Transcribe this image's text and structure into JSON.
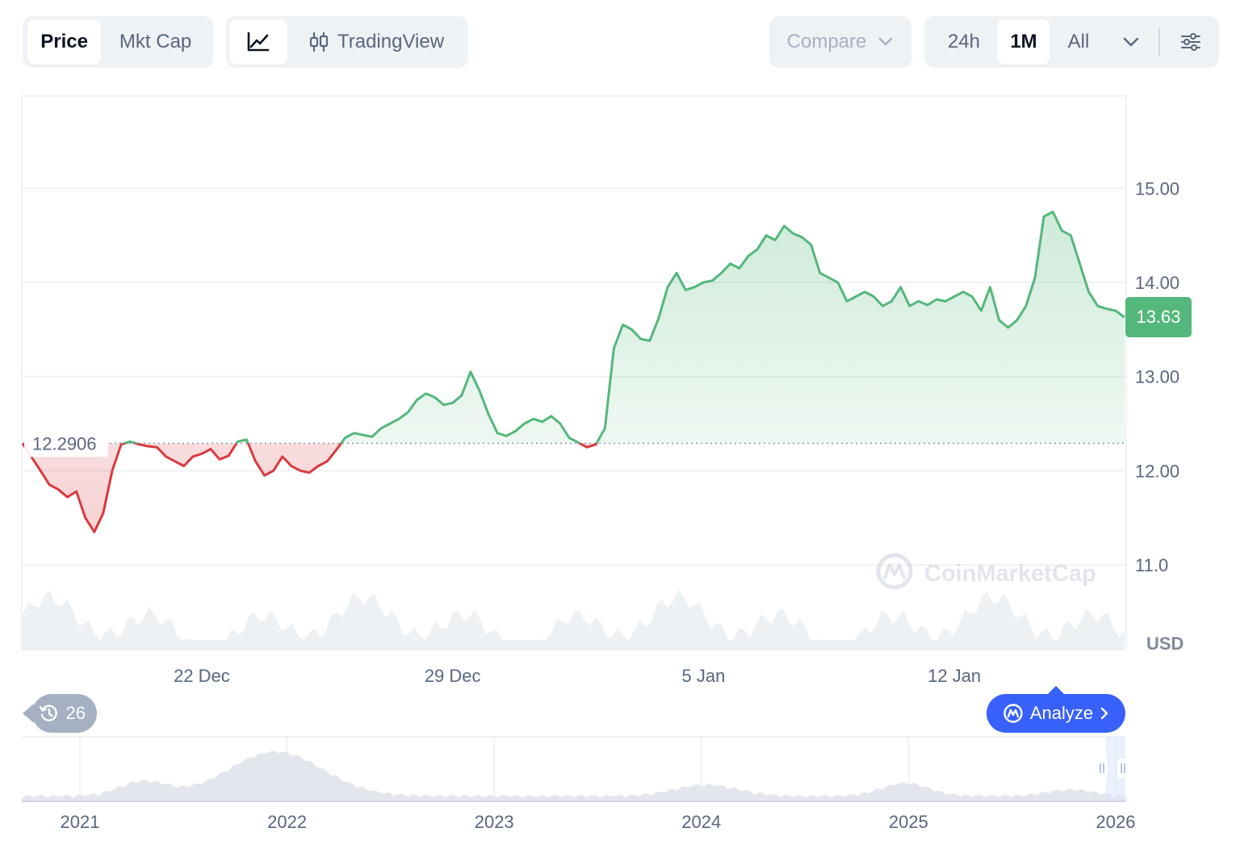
{
  "toolbar": {
    "type_tabs": [
      {
        "label": "Price",
        "active": true
      },
      {
        "label": "Mkt Cap",
        "active": false
      }
    ],
    "chart_tabs": [
      {
        "icon": "line-chart-icon",
        "active": true
      },
      {
        "icon": "candlestick-icon",
        "label": "TradingView",
        "active": false
      }
    ],
    "compare_label": "Compare",
    "range_tabs": [
      {
        "label": "24h",
        "active": false
      },
      {
        "label": "1M",
        "active": true
      },
      {
        "label": "All",
        "active": false
      }
    ],
    "range_more_icon": "chevron-down-icon",
    "settings_icon": "sliders-icon"
  },
  "badges": {
    "open_price": "12.2906",
    "current_price": "13.63",
    "history_count": "26",
    "analyze_label": "Analyze",
    "watermark": "CoinMarketCap",
    "currency": "USD"
  },
  "colors": {
    "up": "#54b77b",
    "down": "#d83a3f",
    "accent": "#3861fb",
    "grid": "#eff2f5",
    "volume": "#e3e7ed"
  },
  "chart_data": [
    {
      "type": "line",
      "id": "price",
      "baseline": 12.2906,
      "last": 13.63,
      "x_ticks": [
        "22 Dec",
        "29 Dec",
        "5 Jan",
        "12 Jan"
      ],
      "y_ticks": [
        "15.00",
        "14.00",
        "13.00",
        "12.00",
        "11.0"
      ],
      "ylim": [
        10.1,
        15.98
      ],
      "ylabel": "USD",
      "grid": true,
      "series": [
        {
          "x": [
            "2025-12-17 00:00",
            "2025-12-17 12:00",
            "2025-12-17 18:00",
            "2025-12-18 00:00",
            "2025-12-18 06:00",
            "2025-12-18 12:00",
            "2025-12-18 18:00",
            "2025-12-19 00:00",
            "2025-12-19 06:00",
            "2025-12-19 12:00",
            "2025-12-19 18:00",
            "2025-12-20 00:00",
            "2025-12-20 06:00",
            "2025-12-20 12:00",
            "2025-12-20 18:00",
            "2025-12-21 00:00",
            "2025-12-21 06:00",
            "2025-12-21 12:00",
            "2025-12-21 18:00",
            "2025-12-22 00:00",
            "2025-12-22 06:00",
            "2025-12-22 12:00",
            "2025-12-22 18:00",
            "2025-12-23 00:00",
            "2025-12-23 06:00",
            "2025-12-23 12:00",
            "2025-12-23 18:00",
            "2025-12-24 00:00",
            "2025-12-24 06:00",
            "2025-12-24 12:00",
            "2025-12-24 18:00",
            "2025-12-25 00:00",
            "2025-12-25 06:00",
            "2025-12-25 12:00",
            "2025-12-25 18:00",
            "2025-12-26 00:00",
            "2025-12-26 06:00",
            "2025-12-26 12:00",
            "2025-12-26 18:00",
            "2025-12-27 00:00",
            "2025-12-27 06:00",
            "2025-12-27 12:00",
            "2025-12-27 18:00",
            "2025-12-28 00:00",
            "2025-12-28 06:00",
            "2025-12-28 12:00",
            "2025-12-28 18:00",
            "2025-12-29 00:00",
            "2025-12-29 06:00",
            "2025-12-29 12:00",
            "2025-12-29 18:00",
            "2025-12-30 00:00",
            "2025-12-30 06:00",
            "2025-12-30 12:00",
            "2025-12-30 18:00",
            "2025-12-31 00:00",
            "2025-12-31 06:00",
            "2025-12-31 12:00",
            "2025-12-31 18:00",
            "2026-01-01 00:00",
            "2026-01-01 06:00",
            "2026-01-01 12:00",
            "2026-01-01 18:00",
            "2026-01-02 00:00",
            "2026-01-02 06:00",
            "2026-01-02 12:00",
            "2026-01-02 18:00",
            "2026-01-03 00:00",
            "2026-01-03 06:00",
            "2026-01-03 12:00",
            "2026-01-03 18:00",
            "2026-01-04 00:00",
            "2026-01-04 06:00",
            "2026-01-04 12:00",
            "2026-01-04 18:00",
            "2026-01-05 00:00",
            "2026-01-05 06:00",
            "2026-01-05 12:00",
            "2026-01-05 18:00",
            "2026-01-06 00:00",
            "2026-01-06 06:00",
            "2026-01-06 12:00",
            "2026-01-06 18:00",
            "2026-01-07 00:00",
            "2026-01-07 06:00",
            "2026-01-07 12:00",
            "2026-01-07 18:00",
            "2026-01-08 00:00",
            "2026-01-08 06:00",
            "2026-01-08 12:00",
            "2026-01-08 18:00",
            "2026-01-09 00:00",
            "2026-01-09 06:00",
            "2026-01-09 12:00",
            "2026-01-09 18:00",
            "2026-01-10 00:00",
            "2026-01-10 06:00",
            "2026-01-10 12:00",
            "2026-01-10 18:00",
            "2026-01-11 00:00",
            "2026-01-11 06:00",
            "2026-01-11 12:00",
            "2026-01-11 18:00",
            "2026-01-12 00:00",
            "2026-01-12 06:00",
            "2026-01-12 12:00",
            "2026-01-12 18:00",
            "2026-01-13 00:00",
            "2026-01-13 06:00",
            "2026-01-13 12:00",
            "2026-01-13 18:00",
            "2026-01-14 00:00",
            "2026-01-14 06:00",
            "2026-01-14 12:00",
            "2026-01-14 18:00",
            "2026-01-15 00:00",
            "2026-01-15 06:00",
            "2026-01-15 12:00",
            "2026-01-15 18:00",
            "2026-01-16 00:00",
            "2026-01-16 06:00",
            "2026-01-16 12:00",
            "2026-01-16 18:00"
          ],
          "y": [
            12.29,
            12.0,
            11.85,
            11.8,
            11.72,
            11.78,
            11.5,
            11.35,
            11.55,
            12.0,
            12.28,
            12.31,
            12.28,
            12.26,
            12.25,
            12.15,
            12.1,
            12.05,
            12.15,
            12.18,
            12.23,
            12.12,
            12.16,
            12.31,
            12.33,
            12.1,
            11.95,
            12.0,
            12.15,
            12.05,
            12.0,
            11.98,
            12.05,
            12.1,
            12.22,
            12.35,
            12.4,
            12.38,
            12.36,
            12.45,
            12.5,
            12.55,
            12.62,
            12.75,
            12.82,
            12.78,
            12.7,
            12.72,
            12.8,
            13.05,
            12.85,
            12.6,
            12.4,
            12.37,
            12.42,
            12.5,
            12.55,
            12.52,
            12.58,
            12.5,
            12.35,
            12.3,
            12.25,
            12.28,
            12.45,
            13.3,
            13.55,
            13.5,
            13.4,
            13.38,
            13.62,
            13.95,
            14.1,
            13.92,
            13.95,
            14.0,
            14.02,
            14.1,
            14.2,
            14.15,
            14.28,
            14.35,
            14.5,
            14.45,
            14.6,
            14.52,
            14.48,
            14.4,
            14.1,
            14.05,
            14.0,
            13.8,
            13.85,
            13.9,
            13.85,
            13.75,
            13.8,
            13.95,
            13.75,
            13.8,
            13.76,
            13.82,
            13.8,
            13.85,
            13.9,
            13.85,
            13.7,
            13.95,
            13.6,
            13.52,
            13.6,
            13.75,
            14.05,
            14.7,
            14.75,
            14.55,
            14.5,
            14.2,
            13.9,
            13.75,
            13.72,
            13.7,
            13.63
          ]
        }
      ]
    },
    {
      "type": "area",
      "id": "navigator",
      "x_ticks": [
        "2021",
        "2022",
        "2023",
        "2024",
        "2025",
        "2026"
      ]
    }
  ]
}
